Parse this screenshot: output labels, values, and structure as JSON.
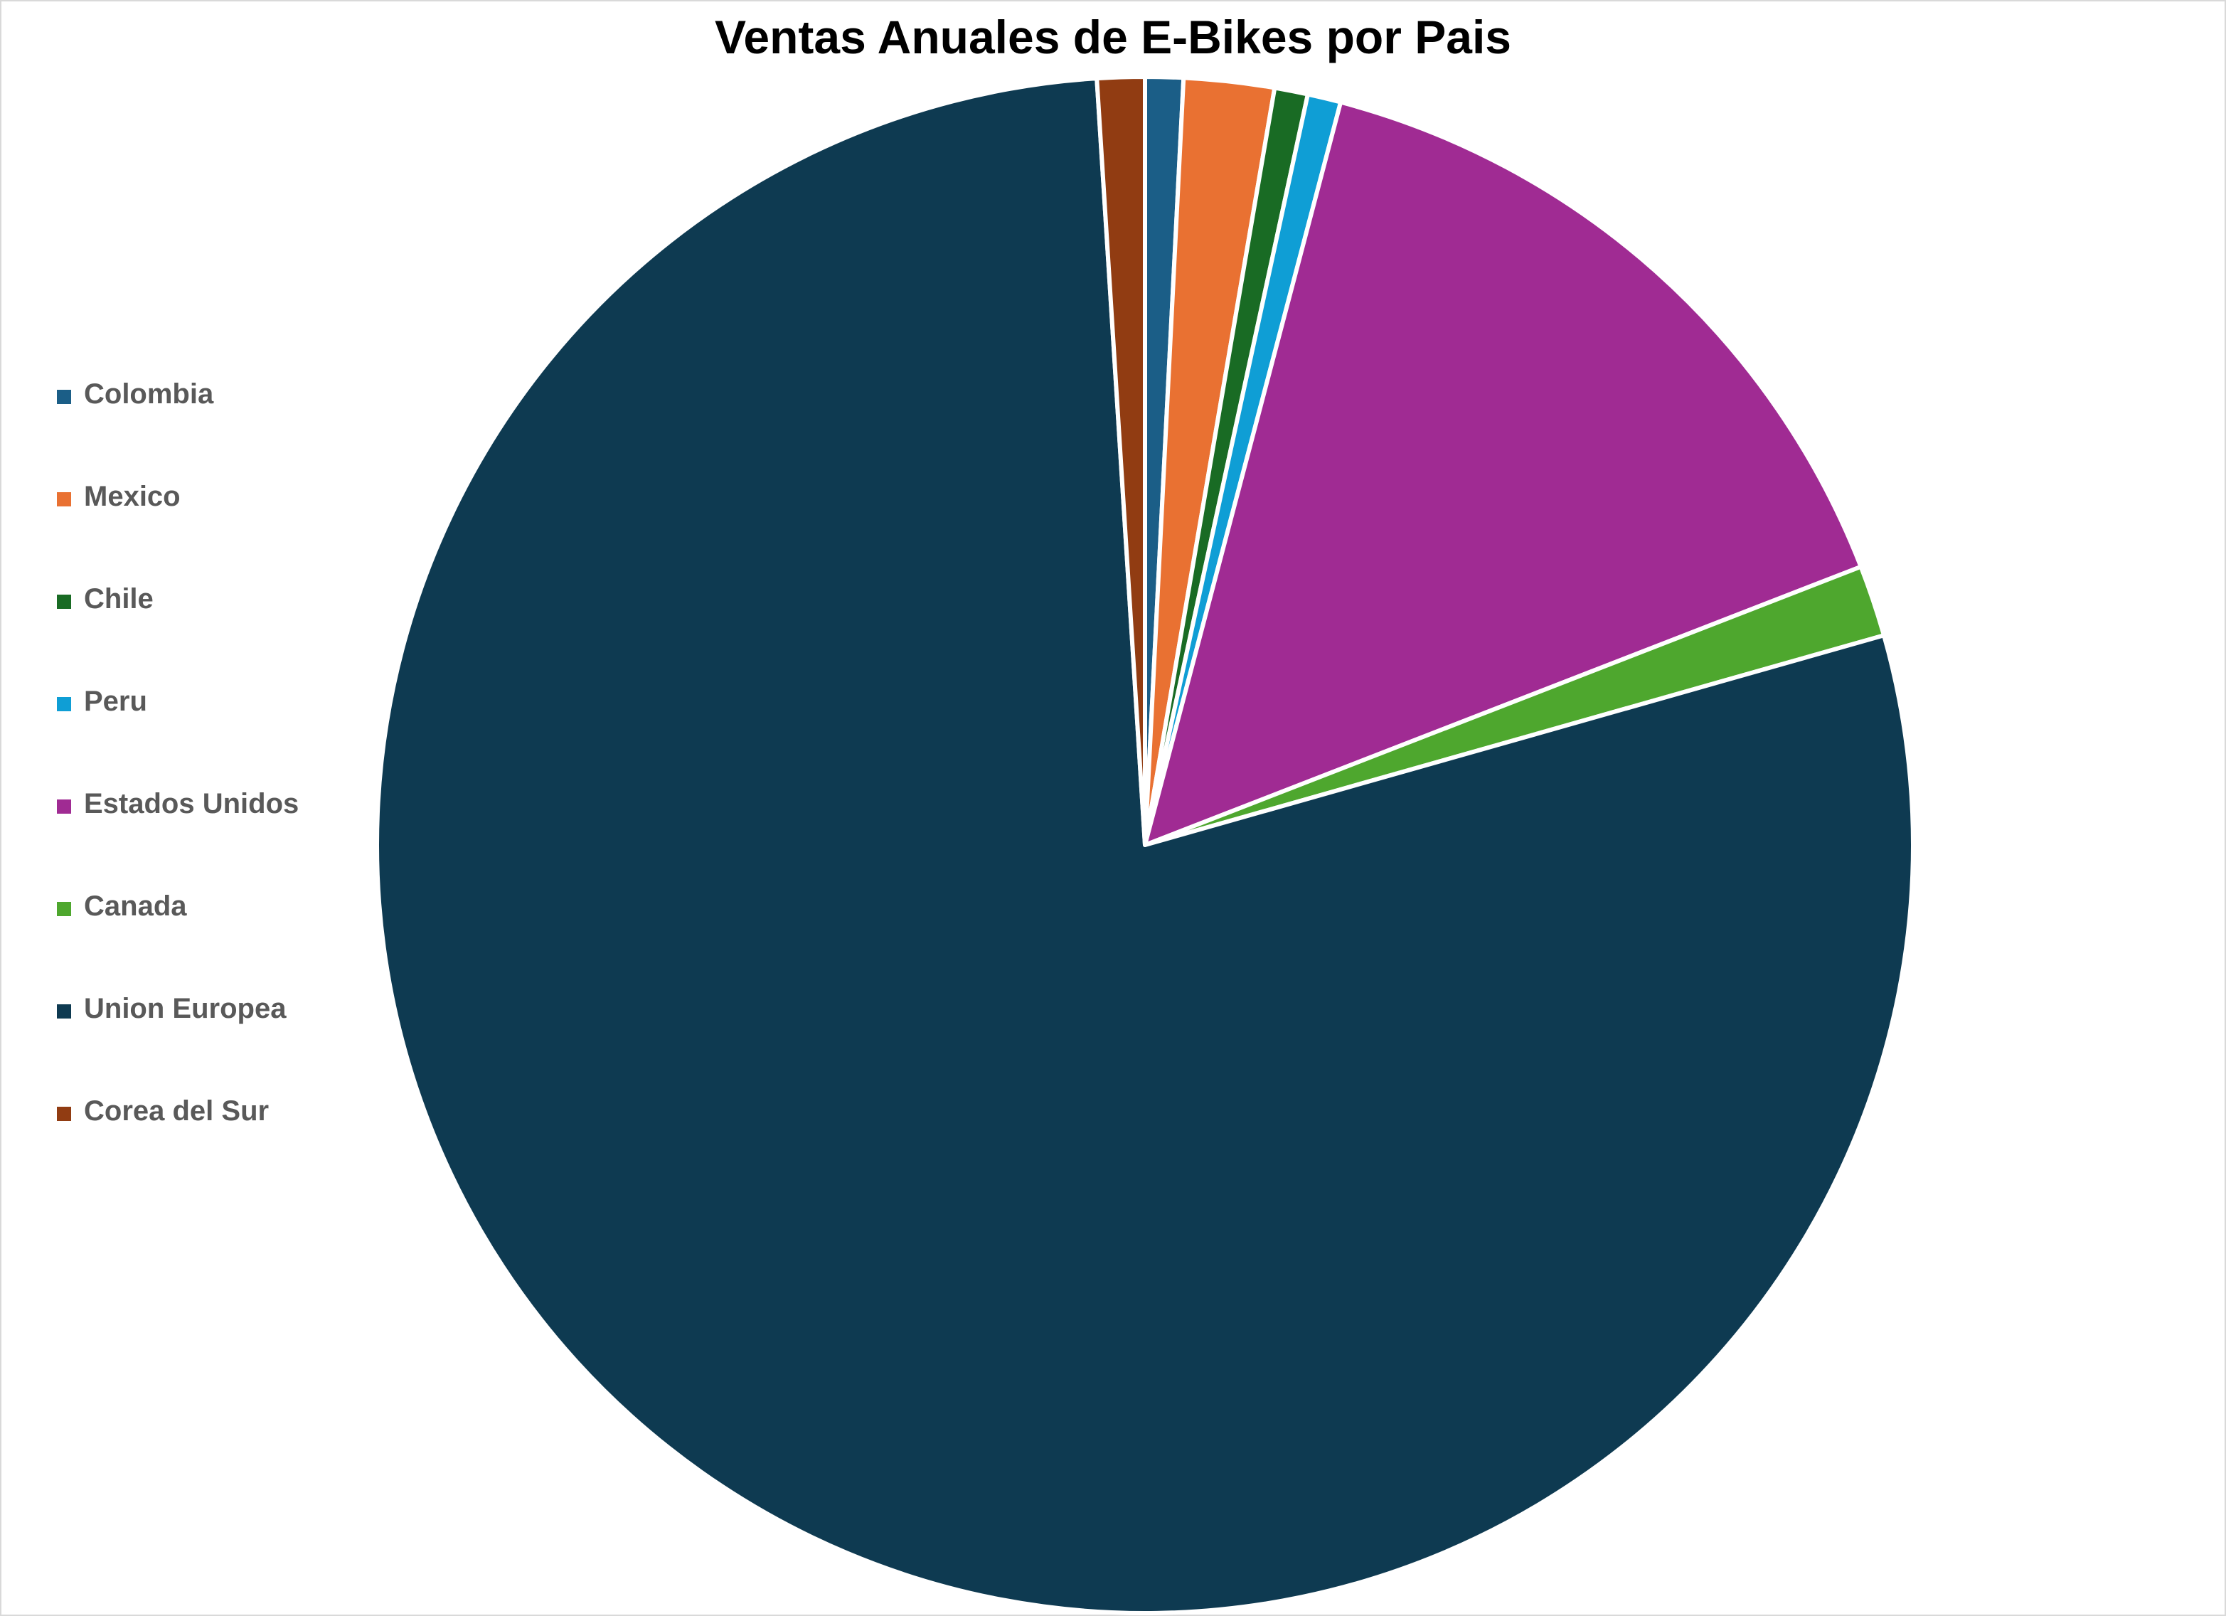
{
  "chart_data": {
    "type": "pie",
    "title": "Ventas Anuales de E-Bikes por Pais",
    "legend_position": "left",
    "categories": [
      "Colombia",
      "Mexico",
      "Chile",
      "Peru",
      "Estados Unidos",
      "Canada",
      "Union Europea",
      "Corea del Sur"
    ],
    "values": [
      0.8,
      1.9,
      0.7,
      0.7,
      15.0,
      1.5,
      78.4,
      1.0
    ],
    "colors": [
      "#1b5e87",
      "#e97132",
      "#196b24",
      "#0f9ed5",
      "#a02b93",
      "#4ea72e",
      "#0e3a51",
      "#913c12"
    ]
  }
}
